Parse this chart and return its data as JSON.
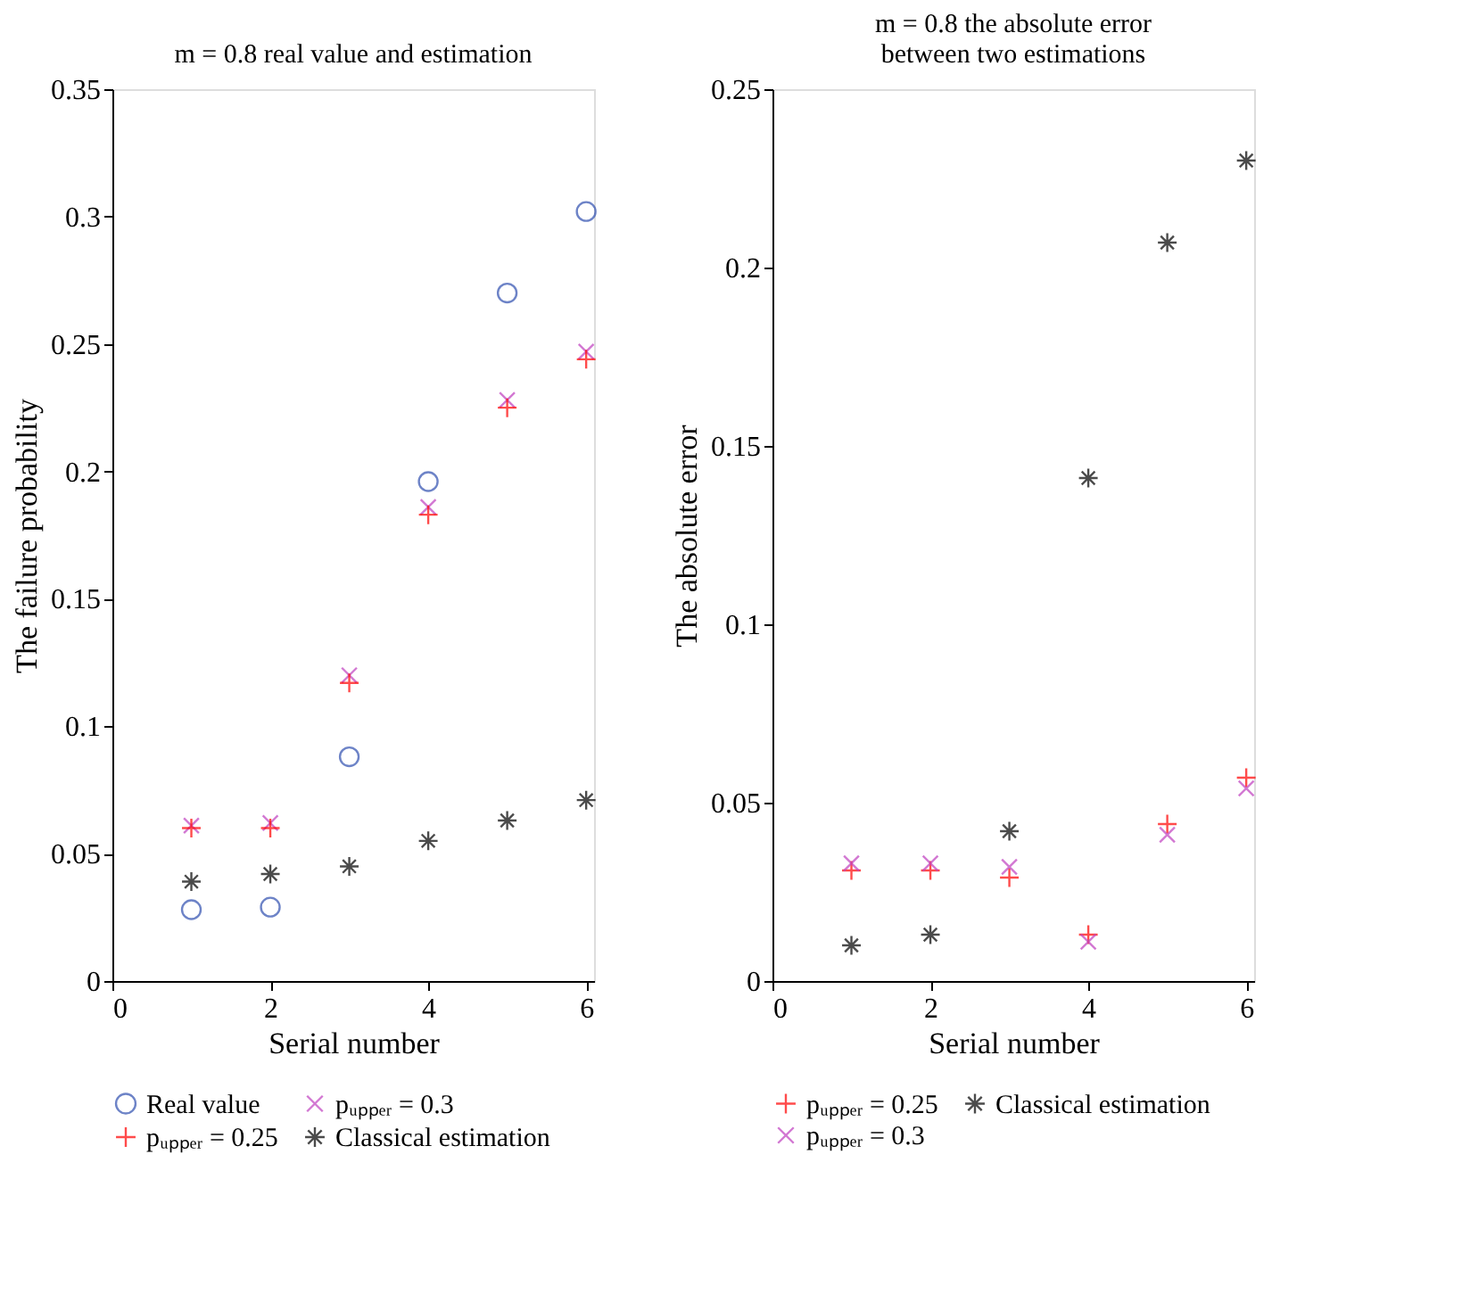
{
  "chart_data": [
    {
      "type": "scatter",
      "title": "m = 0.8 real value and estimation",
      "xlabel": "Serial number",
      "ylabel": "The failure probability",
      "x": [
        1,
        2,
        3,
        4,
        5,
        6
      ],
      "xlim": [
        0,
        6.1
      ],
      "xticks": [
        0,
        2,
        4,
        6
      ],
      "ylim": [
        0,
        0.35
      ],
      "yticks": [
        0,
        0.05,
        0.1,
        0.15,
        0.2,
        0.25,
        0.3,
        0.35
      ],
      "grid": false,
      "legend": "bottom",
      "series": [
        {
          "name": "Real value",
          "color": "#3050b0",
          "marker": "circle",
          "values": [
            0.028,
            0.029,
            0.088,
            0.196,
            0.27,
            0.302
          ]
        },
        {
          "name": "pᵤₚₚₑᵣ = 0.3",
          "color": "#c040c0",
          "marker": "x",
          "values": [
            0.061,
            0.062,
            0.12,
            0.186,
            0.228,
            0.247
          ]
        },
        {
          "name": "pᵤₚₚₑᵣ = 0.25",
          "color": "#ff0000",
          "marker": "plus",
          "values": [
            0.06,
            0.06,
            0.117,
            0.183,
            0.225,
            0.244
          ]
        },
        {
          "name": "Classical estimation",
          "color": "#000000",
          "marker": "cross",
          "values": [
            0.039,
            0.042,
            0.045,
            0.055,
            0.063,
            0.071
          ]
        }
      ]
    },
    {
      "type": "scatter",
      "title": "m = 0.8 the absolute error between two estimations",
      "xlabel": "Serial number",
      "ylabel": "The absolute error",
      "x": [
        1,
        2,
        3,
        4,
        5,
        6
      ],
      "xlim": [
        0,
        6.1
      ],
      "xticks": [
        0,
        2,
        4,
        6
      ],
      "ylim": [
        0,
        0.25
      ],
      "yticks": [
        0,
        0.05,
        0.1,
        0.15,
        0.2,
        0.25
      ],
      "grid": false,
      "legend": "bottom",
      "series": [
        {
          "name": "pᵤₚₚₑᵣ = 0.25",
          "color": "#ff0000",
          "marker": "plus",
          "values": [
            0.031,
            0.031,
            0.029,
            0.013,
            0.044,
            0.057
          ]
        },
        {
          "name": "Classical estimation",
          "color": "#000000",
          "marker": "cross",
          "values": [
            0.01,
            0.013,
            0.042,
            0.141,
            0.207,
            0.23
          ]
        },
        {
          "name": "pᵤₚₚₑᵣ = 0.3",
          "color": "#c040c0",
          "marker": "x",
          "values": [
            0.033,
            0.033,
            0.032,
            0.011,
            0.041,
            0.054
          ]
        }
      ]
    }
  ]
}
